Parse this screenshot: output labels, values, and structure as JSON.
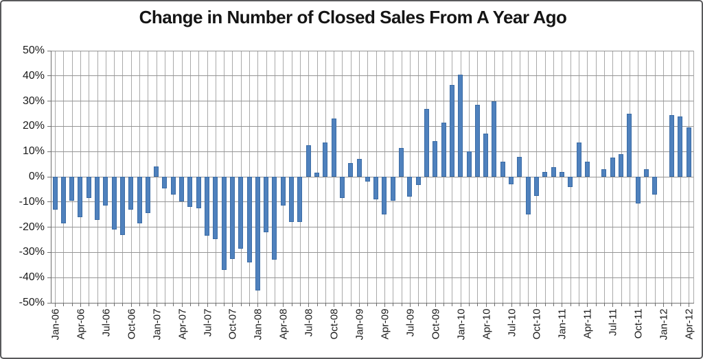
{
  "title": "Change in Number of Closed Sales From A Year Ago",
  "colors": {
    "bar_fill": "#4F81BD",
    "bar_border": "#3a6ba5",
    "gridline_horizontal": "#949494",
    "gridline_vertical": "#a9a9a9",
    "axis": "#6e6e6e",
    "text": "#1a1a1a",
    "background": "#ffffff",
    "outer_border": "#58595b"
  },
  "chart_data": {
    "type": "bar",
    "title": "Change in Number of Closed Sales From A Year Ago",
    "xlabel": "",
    "ylabel": "",
    "ylim": [
      -50,
      50
    ],
    "y_tick_interval": 10,
    "y_tick_labels": [
      "50%",
      "40%",
      "30%",
      "20%",
      "10%",
      "0%",
      "-10%",
      "-20%",
      "-30%",
      "-40%",
      "-50%"
    ],
    "x_tick_label_every_n_months": 3,
    "grid": "horizontal every 10%, vertical every month",
    "legend_position": "none",
    "categories": [
      "Jan-06",
      "Feb-06",
      "Mar-06",
      "Apr-06",
      "May-06",
      "Jun-06",
      "Jul-06",
      "Aug-06",
      "Sep-06",
      "Oct-06",
      "Nov-06",
      "Dec-06",
      "Jan-07",
      "Feb-07",
      "Mar-07",
      "Apr-07",
      "May-07",
      "Jun-07",
      "Jul-07",
      "Aug-07",
      "Sep-07",
      "Oct-07",
      "Nov-07",
      "Dec-07",
      "Jan-08",
      "Feb-08",
      "Mar-08",
      "Apr-08",
      "May-08",
      "Jun-08",
      "Jul-08",
      "Aug-08",
      "Sep-08",
      "Oct-08",
      "Nov-08",
      "Dec-08",
      "Jan-09",
      "Feb-09",
      "Mar-09",
      "Apr-09",
      "May-09",
      "Jun-09",
      "Jul-09",
      "Aug-09",
      "Sep-09",
      "Oct-09",
      "Nov-09",
      "Dec-09",
      "Jan-10",
      "Feb-10",
      "Mar-10",
      "Apr-10",
      "May-10",
      "Jun-10",
      "Jul-10",
      "Aug-10",
      "Sep-10",
      "Oct-10",
      "Nov-10",
      "Dec-10",
      "Jan-11",
      "Feb-11",
      "Mar-11",
      "Apr-11",
      "May-11",
      "Jun-11",
      "Jul-11",
      "Aug-11",
      "Sep-11",
      "Oct-11",
      "Nov-11",
      "Dec-11",
      "Jan-12",
      "Feb-12",
      "Mar-12",
      "Apr-12"
    ],
    "values": [
      -13,
      -18.5,
      -9.5,
      -16,
      -8.5,
      -17,
      -11.5,
      -21,
      -23,
      -13,
      -18.5,
      -14.5,
      4,
      -4.7,
      -7,
      -9.7,
      -12,
      -12.5,
      -23.3,
      -24.7,
      -37,
      -32.5,
      -28.5,
      -34,
      -45,
      -22,
      -33,
      -11.5,
      -18,
      -18,
      12.5,
      1.5,
      13.5,
      23,
      -8.3,
      5.4,
      7,
      -2,
      -9,
      -15,
      -9.5,
      11.5,
      -8,
      -3.3,
      27,
      14,
      21.5,
      36.5,
      40.5,
      10,
      28.5,
      17,
      30,
      6,
      -3,
      8,
      -15,
      -7.5,
      2,
      3.7,
      2,
      -4,
      13.5,
      6,
      0,
      3,
      7.5,
      9,
      25,
      -10.5,
      3,
      -7,
      0,
      24.5,
      24,
      19.5
    ]
  }
}
